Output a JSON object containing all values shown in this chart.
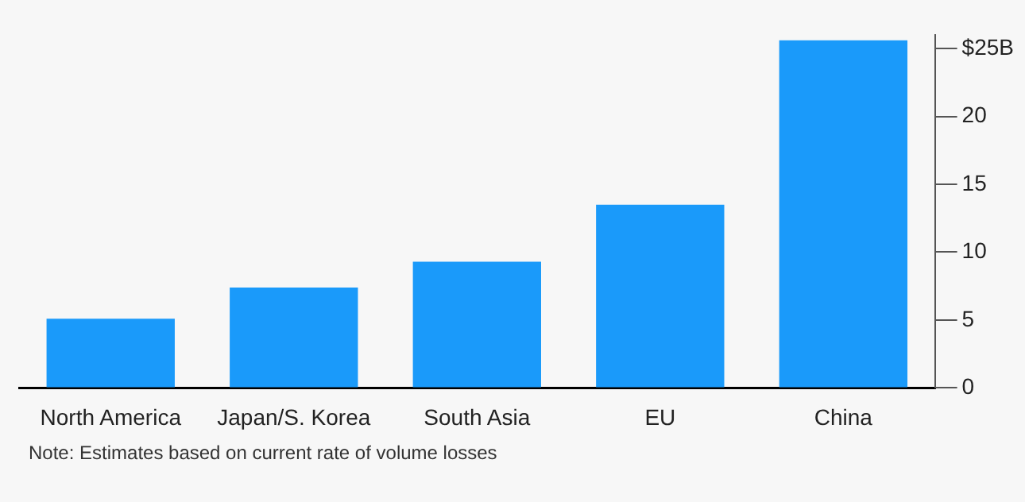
{
  "chart_data": {
    "type": "bar",
    "categories": [
      "North America",
      "Japan/S. Korea",
      "South Asia",
      "EU",
      "China"
    ],
    "values": [
      5.1,
      7.4,
      9.3,
      13.5,
      25.6
    ],
    "color": "#1a9afa",
    "ylim": [
      0,
      26
    ],
    "yticks": [
      0,
      5,
      10,
      15,
      20,
      {
        "value": 25,
        "label": "$25B"
      }
    ],
    "grid": false,
    "legend": false,
    "annotations": [
      "Note: Estimates based on current rate of volume losses"
    ]
  }
}
